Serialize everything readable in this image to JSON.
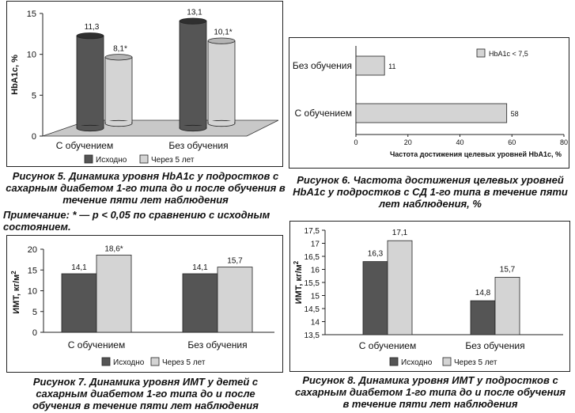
{
  "chart_data": [
    {
      "type": "bar",
      "style": "3d",
      "categories": [
        "С обучением",
        "Без обучения"
      ],
      "series": [
        {
          "name": "Исходно",
          "values": [
            11.3,
            13.1
          ],
          "labels": [
            "11,3",
            "13,1"
          ],
          "color": "#555555"
        },
        {
          "name": "Через 5 лет",
          "values": [
            8.1,
            10.1
          ],
          "labels": [
            "8,1*",
            "10,1*"
          ],
          "color": "#d4d4d4"
        }
      ],
      "ylabel": "HbA1c, %",
      "ylim": [
        0,
        15
      ],
      "yticks": [
        "0",
        "5",
        "10",
        "15"
      ],
      "legend_position": "bottom",
      "caption": "Рисунок 5. Динамика уровня HbA1c у подростков с сахарным диабетом 1-го типа до и после обучения в течение пяти лет наблюдения"
    },
    {
      "type": "bar",
      "orientation": "horizontal",
      "categories": [
        "Без обучения",
        "С обучением"
      ],
      "series": [
        {
          "name": "HbA1c < 7,5",
          "values": [
            11,
            58
          ],
          "labels": [
            "11",
            "58"
          ],
          "color": "#d4d4d4"
        }
      ],
      "xlabel": "Частота достижения целевых уровней HbA1c, %",
      "xlim": [
        0,
        80
      ],
      "xticks": [
        "0",
        "20",
        "40",
        "60",
        "80"
      ],
      "legend_position": "top-right",
      "caption": "Рисунок 6. Частота достижения целевых уровней HbA1c у подростков с СД 1-го типа в течение пяти лет наблюдения, %"
    },
    {
      "type": "bar",
      "categories": [
        "С обучением",
        "Без обучения"
      ],
      "series": [
        {
          "name": "Исходно",
          "values": [
            14.1,
            14.1
          ],
          "labels": [
            "14,1",
            "14,1"
          ],
          "color": "#555555"
        },
        {
          "name": "Через 5 лет",
          "values": [
            18.6,
            15.7
          ],
          "labels": [
            "18,6*",
            "15,7"
          ],
          "color": "#d4d4d4"
        }
      ],
      "ylabel": "ИМТ, кг/м",
      "ylabel_sup": "2",
      "ylim": [
        0,
        20
      ],
      "yticks": [
        "0",
        "5",
        "10",
        "15",
        "20"
      ],
      "legend_position": "bottom",
      "caption": "Рисунок 7. Динамика уровня ИМТ у детей с сахарным диабетом 1-го типа до и после обучения в течение пяти лет наблюдения"
    },
    {
      "type": "bar",
      "categories": [
        "С обучением",
        "Без обучения"
      ],
      "series": [
        {
          "name": "Исходно",
          "values": [
            16.3,
            14.8
          ],
          "labels": [
            "16,3",
            "14,8"
          ],
          "color": "#555555"
        },
        {
          "name": "Через 5 лет",
          "values": [
            17.1,
            15.7
          ],
          "labels": [
            "17,1",
            "15,7"
          ],
          "color": "#d4d4d4"
        }
      ],
      "ylabel": "ИМТ, кг/м",
      "ylabel_sup": "2",
      "ylim": [
        13.5,
        17.5
      ],
      "yticks": [
        "13,5",
        "14",
        "14,5",
        "15",
        "15,5",
        "16",
        "16,5",
        "17",
        "17,5"
      ],
      "legend_position": "bottom",
      "caption": "Рисунок 8. Динамика уровня ИМТ у подростков с сахарным диабетом 1-го типа до и после обучения в течение пяти лет наблюдения"
    }
  ],
  "note": "Примечание: * — p < 0,05 по сравнению с исходным состоянием."
}
